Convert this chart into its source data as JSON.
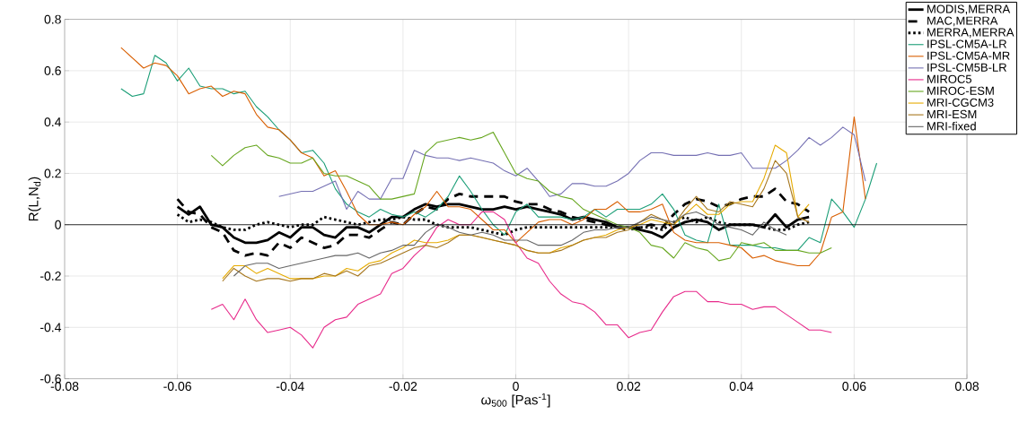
{
  "chart_data": {
    "type": "line",
    "xlabel": "ω$_{500}$ [Pas$^{-1}$]",
    "ylabel": "R(L,N$_{d}$)",
    "xlim": [
      -0.08,
      0.08
    ],
    "ylim": [
      -0.6,
      0.8
    ],
    "xticks": [
      -0.08,
      -0.06,
      -0.04,
      -0.02,
      0,
      0.02,
      0.04,
      0.06,
      0.08
    ],
    "yticks": [
      -0.6,
      -0.4,
      -0.2,
      0,
      0.2,
      0.4,
      0.6,
      0.8
    ],
    "grid": true,
    "legend": "top right",
    "ref_lines": [
      {
        "axis": "y",
        "value": 0,
        "color": "#000000"
      }
    ],
    "x": [
      -0.07,
      -0.068,
      -0.066,
      -0.064,
      -0.062,
      -0.06,
      -0.058,
      -0.056,
      -0.054,
      -0.052,
      -0.05,
      -0.048,
      -0.046,
      -0.044,
      -0.042,
      -0.04,
      -0.038,
      -0.036,
      -0.034,
      -0.032,
      -0.03,
      -0.028,
      -0.026,
      -0.024,
      -0.022,
      -0.02,
      -0.018,
      -0.016,
      -0.014,
      -0.012,
      -0.01,
      -0.008,
      -0.006,
      -0.004,
      -0.002,
      0,
      0.002,
      0.004,
      0.006,
      0.008,
      0.01,
      0.012,
      0.014,
      0.016,
      0.018,
      0.02,
      0.022,
      0.024,
      0.026,
      0.028,
      0.03,
      0.032,
      0.034,
      0.036,
      0.038,
      0.04,
      0.042,
      0.044,
      0.046,
      0.048,
      0.05,
      0.052,
      0.054,
      0.056,
      0.058,
      0.06,
      0.062,
      0.064
    ],
    "series": [
      {
        "name": "MODIS,MERRA",
        "color": "#000000",
        "line_style": "solid",
        "values": [
          null,
          null,
          null,
          null,
          null,
          0.07,
          0.04,
          0.07,
          0.0,
          -0.01,
          -0.05,
          -0.07,
          -0.07,
          -0.06,
          -0.03,
          -0.05,
          -0.01,
          -0.01,
          -0.04,
          -0.05,
          -0.01,
          -0.01,
          -0.03,
          0.0,
          0.03,
          0.03,
          0.06,
          0.08,
          0.07,
          0.08,
          0.08,
          0.07,
          0.06,
          0.06,
          0.07,
          0.06,
          0.07,
          0.06,
          0.05,
          0.04,
          0.02,
          0.03,
          0.02,
          0.01,
          -0.01,
          -0.01,
          -0.02,
          -0.03,
          -0.05,
          -0.01,
          0.01,
          0.02,
          0.01,
          -0.02,
          0.0,
          0.0,
          0.0,
          -0.01,
          0.04,
          -0.01,
          0.02,
          0.03,
          null,
          null,
          null,
          null,
          null,
          null
        ]
      },
      {
        "name": "MAC,MERRA",
        "color": "#000000",
        "line_style": "dashed",
        "values": [
          null,
          null,
          null,
          null,
          null,
          0.1,
          0.05,
          0.04,
          -0.01,
          -0.03,
          -0.1,
          -0.12,
          -0.11,
          -0.12,
          -0.07,
          -0.09,
          -0.05,
          -0.07,
          -0.09,
          -0.08,
          -0.04,
          -0.04,
          -0.05,
          -0.02,
          0.01,
          0.0,
          0.04,
          0.07,
          0.06,
          0.1,
          0.12,
          0.11,
          0.11,
          0.11,
          0.11,
          0.09,
          0.08,
          0.08,
          0.06,
          0.05,
          0.03,
          0.02,
          0.01,
          0.0,
          -0.01,
          -0.02,
          -0.01,
          0.0,
          -0.01,
          0.04,
          0.08,
          0.1,
          0.09,
          0.07,
          0.08,
          0.1,
          0.11,
          0.11,
          0.14,
          0.09,
          0.08,
          0.05,
          null,
          null,
          null,
          null,
          null,
          null
        ]
      },
      {
        "name": "MERRA,MERRA",
        "color": "#000000",
        "line_style": "dotted",
        "values": [
          null,
          null,
          null,
          null,
          null,
          0.04,
          0.01,
          0.02,
          0.01,
          -0.01,
          -0.02,
          -0.02,
          0.0,
          0.01,
          0.0,
          -0.01,
          0.0,
          0.0,
          0.03,
          0.02,
          0.01,
          0.0,
          0.01,
          0.02,
          0.02,
          0.03,
          0.02,
          0.02,
          0.0,
          -0.01,
          -0.01,
          -0.01,
          -0.02,
          -0.03,
          -0.04,
          -0.02,
          -0.01,
          -0.01,
          -0.01,
          -0.01,
          -0.01,
          -0.01,
          -0.01,
          -0.01,
          -0.01,
          -0.01,
          -0.01,
          -0.01,
          -0.02,
          0.01,
          0.03,
          0.01,
          0.03,
          0.01,
          0.0,
          0.0,
          0.0,
          -0.01,
          -0.02,
          -0.02,
          0.0,
          0.01,
          null,
          null,
          null,
          null,
          null,
          null
        ]
      },
      {
        "name": "IPSL-CM5A-LR",
        "color": "#1b9e77",
        "values": [
          0.53,
          0.5,
          0.51,
          0.66,
          0.63,
          0.56,
          0.61,
          0.54,
          0.53,
          0.53,
          0.51,
          0.52,
          0.46,
          0.42,
          0.37,
          0.33,
          0.28,
          0.29,
          0.24,
          0.14,
          0.08,
          0.05,
          0.03,
          0.06,
          0.04,
          0.03,
          0.05,
          0.03,
          0.06,
          0.11,
          0.19,
          0.13,
          0.06,
          0.0,
          -0.04,
          0.05,
          0.08,
          0.03,
          0.03,
          0.03,
          0.02,
          0.03,
          0.06,
          0.03,
          0.06,
          0.06,
          0.06,
          0.08,
          0.12,
          0.06,
          -0.04,
          -0.06,
          -0.07,
          0.08,
          -0.08,
          -0.08,
          -0.08,
          -0.09,
          -0.09,
          -0.1,
          -0.1,
          -0.05,
          -0.07,
          0.1,
          0.05,
          -0.01,
          0.1,
          0.24
        ]
      },
      {
        "name": "IPSL-CM5A-MR",
        "color": "#d95f02",
        "values": [
          0.69,
          0.65,
          0.61,
          0.63,
          0.62,
          0.58,
          0.51,
          0.53,
          0.54,
          0.5,
          0.52,
          0.51,
          0.43,
          0.38,
          0.37,
          0.33,
          0.28,
          0.26,
          0.19,
          0.21,
          0.13,
          0.04,
          0.0,
          0.0,
          0.01,
          0.0,
          0.04,
          0.07,
          0.13,
          0.07,
          0.07,
          0.06,
          0.02,
          -0.02,
          -0.02,
          -0.07,
          -0.03,
          0.01,
          0.02,
          0.02,
          0.0,
          0.02,
          0.06,
          0.06,
          0.09,
          0.05,
          0.05,
          0.06,
          0.08,
          -0.03,
          -0.06,
          -0.07,
          -0.07,
          -0.07,
          -0.08,
          -0.09,
          -0.13,
          -0.12,
          -0.14,
          -0.15,
          -0.16,
          -0.16,
          -0.11,
          0.03,
          0.05,
          0.42,
          0.1,
          null
        ]
      },
      {
        "name": "IPSL-CM5B-LR",
        "color": "#7570b3",
        "values": [
          null,
          null,
          null,
          null,
          null,
          null,
          null,
          null,
          null,
          null,
          null,
          null,
          null,
          null,
          0.11,
          0.12,
          0.13,
          0.13,
          0.15,
          0.17,
          0.06,
          0.13,
          0.1,
          0.1,
          0.18,
          0.18,
          0.29,
          0.27,
          0.26,
          0.26,
          0.25,
          0.26,
          0.25,
          0.24,
          0.21,
          0.19,
          0.22,
          0.17,
          0.11,
          0.12,
          0.16,
          0.16,
          0.15,
          0.15,
          0.17,
          0.2,
          0.25,
          0.28,
          0.28,
          0.27,
          0.27,
          0.27,
          0.28,
          0.27,
          0.27,
          0.28,
          0.22,
          0.22,
          0.22,
          0.25,
          0.29,
          0.34,
          0.31,
          0.34,
          0.38,
          0.35,
          0.17,
          null
        ]
      },
      {
        "name": "MIROC5",
        "color": "#e7298a",
        "values": [
          null,
          null,
          null,
          null,
          null,
          null,
          null,
          null,
          -0.33,
          -0.31,
          -0.37,
          -0.29,
          -0.37,
          -0.42,
          -0.41,
          -0.4,
          -0.43,
          -0.48,
          -0.4,
          -0.37,
          -0.36,
          -0.31,
          -0.29,
          -0.27,
          -0.19,
          -0.17,
          -0.12,
          -0.08,
          -0.01,
          0.02,
          0.0,
          0.0,
          0.05,
          0.05,
          0.02,
          -0.07,
          -0.13,
          -0.15,
          -0.22,
          -0.27,
          -0.3,
          -0.31,
          -0.34,
          -0.39,
          -0.39,
          -0.44,
          -0.42,
          -0.41,
          -0.34,
          -0.28,
          -0.26,
          -0.26,
          -0.3,
          -0.3,
          -0.31,
          -0.31,
          -0.33,
          -0.32,
          -0.32,
          -0.35,
          -0.38,
          -0.41,
          -0.41,
          -0.42,
          null,
          null,
          null,
          null
        ]
      },
      {
        "name": "MIROC-ESM",
        "color": "#66a61e",
        "values": [
          null,
          null,
          null,
          null,
          null,
          null,
          null,
          null,
          0.27,
          0.23,
          0.27,
          0.3,
          0.31,
          0.27,
          0.26,
          0.24,
          0.24,
          0.26,
          0.2,
          0.19,
          0.19,
          0.17,
          0.15,
          0.1,
          0.1,
          0.11,
          0.12,
          0.28,
          0.32,
          0.33,
          0.34,
          0.33,
          0.34,
          0.36,
          0.28,
          0.2,
          0.18,
          0.17,
          0.13,
          0.11,
          0.1,
          0.06,
          0.04,
          0.02,
          0.0,
          -0.01,
          -0.03,
          -0.08,
          -0.09,
          -0.13,
          -0.07,
          -0.09,
          -0.1,
          -0.14,
          -0.13,
          -0.07,
          -0.08,
          -0.07,
          -0.1,
          -0.1,
          -0.1,
          -0.11,
          -0.11,
          -0.09,
          null,
          null,
          null,
          null
        ]
      },
      {
        "name": "MRI-CGCM3",
        "color": "#e6ab02",
        "values": [
          null,
          null,
          null,
          null,
          null,
          null,
          null,
          null,
          null,
          -0.21,
          -0.16,
          -0.16,
          -0.19,
          -0.17,
          -0.19,
          -0.21,
          -0.21,
          -0.21,
          -0.2,
          -0.2,
          -0.17,
          -0.18,
          -0.15,
          -0.14,
          -0.11,
          -0.09,
          -0.06,
          -0.07,
          -0.07,
          -0.06,
          -0.04,
          -0.04,
          -0.05,
          -0.06,
          -0.07,
          -0.08,
          -0.1,
          -0.11,
          -0.11,
          -0.09,
          -0.08,
          -0.06,
          -0.05,
          -0.04,
          -0.02,
          -0.01,
          0.0,
          0.02,
          0.01,
          0.0,
          0.04,
          0.08,
          0.04,
          0.04,
          0.08,
          0.09,
          0.09,
          0.18,
          0.31,
          0.28,
          0.03,
          0.08,
          null,
          null,
          null,
          null,
          null,
          null
        ]
      },
      {
        "name": "MRI-ESM",
        "color": "#a6761d",
        "values": [
          null,
          null,
          null,
          null,
          null,
          null,
          null,
          null,
          null,
          -0.22,
          -0.17,
          -0.2,
          -0.22,
          -0.21,
          -0.21,
          -0.22,
          -0.21,
          -0.21,
          -0.19,
          -0.2,
          -0.18,
          -0.2,
          -0.16,
          -0.15,
          -0.13,
          -0.11,
          -0.09,
          -0.08,
          -0.09,
          -0.07,
          -0.04,
          -0.04,
          -0.05,
          -0.06,
          -0.07,
          -0.08,
          -0.1,
          -0.11,
          -0.11,
          -0.1,
          -0.08,
          -0.06,
          -0.05,
          -0.05,
          -0.03,
          -0.02,
          0.01,
          0.04,
          0.02,
          0.0,
          0.06,
          0.11,
          0.06,
          0.05,
          0.09,
          0.08,
          0.07,
          0.14,
          0.25,
          0.2,
          0.03,
          0.01,
          null,
          null,
          null,
          null,
          null,
          null
        ]
      },
      {
        "name": "MRI-fixed",
        "color": "#666666",
        "values": [
          null,
          null,
          null,
          null,
          null,
          null,
          null,
          null,
          null,
          null,
          -0.2,
          -0.16,
          -0.15,
          -0.15,
          -0.17,
          -0.16,
          -0.15,
          -0.14,
          -0.13,
          -0.12,
          -0.12,
          -0.11,
          -0.13,
          -0.11,
          -0.1,
          -0.08,
          -0.08,
          -0.03,
          0.0,
          -0.01,
          -0.03,
          -0.04,
          -0.03,
          -0.04,
          -0.06,
          -0.06,
          -0.06,
          -0.08,
          -0.08,
          -0.08,
          -0.06,
          -0.03,
          -0.02,
          -0.02,
          -0.01,
          -0.01,
          0.01,
          0.03,
          0.02,
          0.01,
          0.04,
          0.05,
          0.03,
          0.0,
          -0.01,
          -0.02,
          -0.04,
          0.01,
          -0.02,
          -0.04,
          null,
          null,
          null,
          null,
          null,
          null,
          null,
          null
        ]
      }
    ]
  }
}
